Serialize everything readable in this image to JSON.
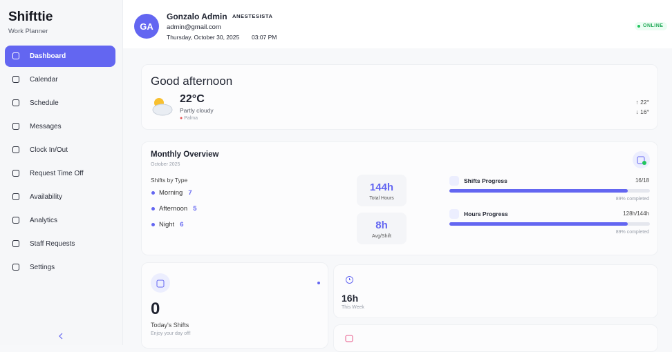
{
  "sidebar": {
    "brand": "Shifttie",
    "tagline": "Work Planner",
    "nav": [
      "Dashboard",
      "Calendar",
      "Schedule",
      "Messages",
      "Clock In/Out",
      "Request Time Off",
      "Availability",
      "Analytics",
      "Staff Requests",
      "Settings"
    ]
  },
  "header": {
    "avatar": "GA",
    "name": "Gonzalo Admin",
    "role": "ANESTESISTA",
    "email": "admin@gmail.com",
    "date": "Thursday, October 30, 2025",
    "time": "03:07 PM",
    "status": "ONLINE"
  },
  "greeting": {
    "title": "Good afternoon",
    "temperature": "22°C",
    "condition": "Partly cloudy",
    "location": "Palma",
    "high": "↑ 22°",
    "low": "↓ 16°"
  },
  "overview": {
    "title": "Monthly Overview",
    "subtitle": "October 2025",
    "shifts_heading": "Shifts by Type",
    "shift_types": [
      {
        "name": "Morning",
        "count": 7
      },
      {
        "name": "Afternoon",
        "count": 5
      },
      {
        "name": "Night",
        "count": 6
      }
    ],
    "stats": [
      {
        "value": "144h",
        "label": "Total Hours"
      },
      {
        "value": "8h",
        "label": "Avg/Shift"
      }
    ],
    "progress": [
      {
        "title": "Shifts Progress",
        "amount": "16/18",
        "completed": {
          "value": 89,
          "label": "89% completed"
        }
      },
      {
        "title": "Hours Progress",
        "amount": "128h/144h",
        "completed": {
          "value": 89,
          "label": "89% completed"
        }
      }
    ]
  },
  "cards": [
    {
      "value": 0,
      "label": "Today's Shifts",
      "note": "Enjoy your day off!"
    },
    {
      "value": "16h",
      "label": "This Week"
    }
  ]
}
